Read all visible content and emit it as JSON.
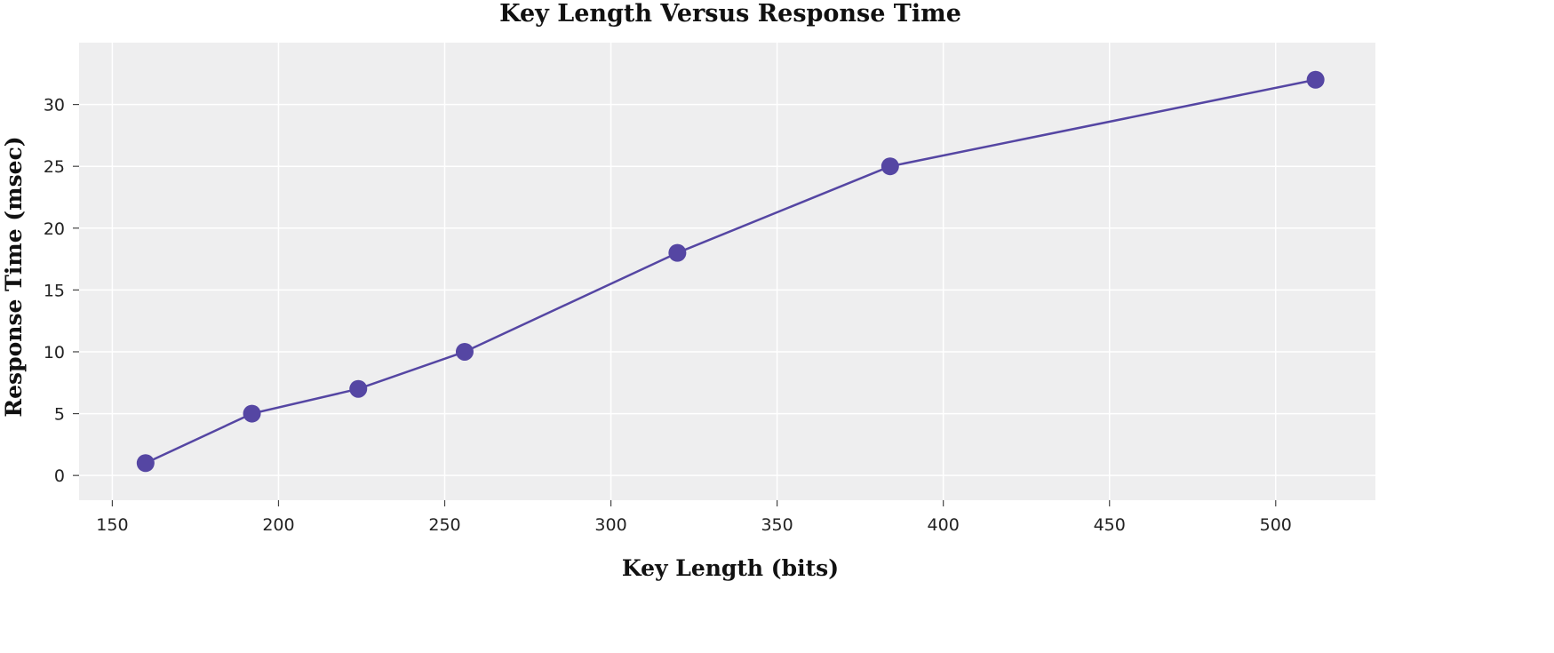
{
  "chart_data": {
    "type": "line",
    "title": "Key Length Versus Response Time",
    "xlabel": "Key Length (bits)",
    "ylabel": "Response Time (msec)",
    "xlim": [
      140,
      530
    ],
    "ylim": [
      -2,
      35
    ],
    "xticks": [
      150,
      200,
      250,
      300,
      350,
      400,
      450,
      500
    ],
    "yticks": [
      0,
      5,
      10,
      15,
      20,
      25,
      30
    ],
    "grid": true,
    "series": [
      {
        "x": [
          160,
          192,
          224,
          256,
          320,
          384,
          512
        ],
        "y": [
          1,
          5,
          7,
          10,
          18,
          25,
          32
        ],
        "color": "#5546a3",
        "marker": "circle"
      }
    ]
  }
}
